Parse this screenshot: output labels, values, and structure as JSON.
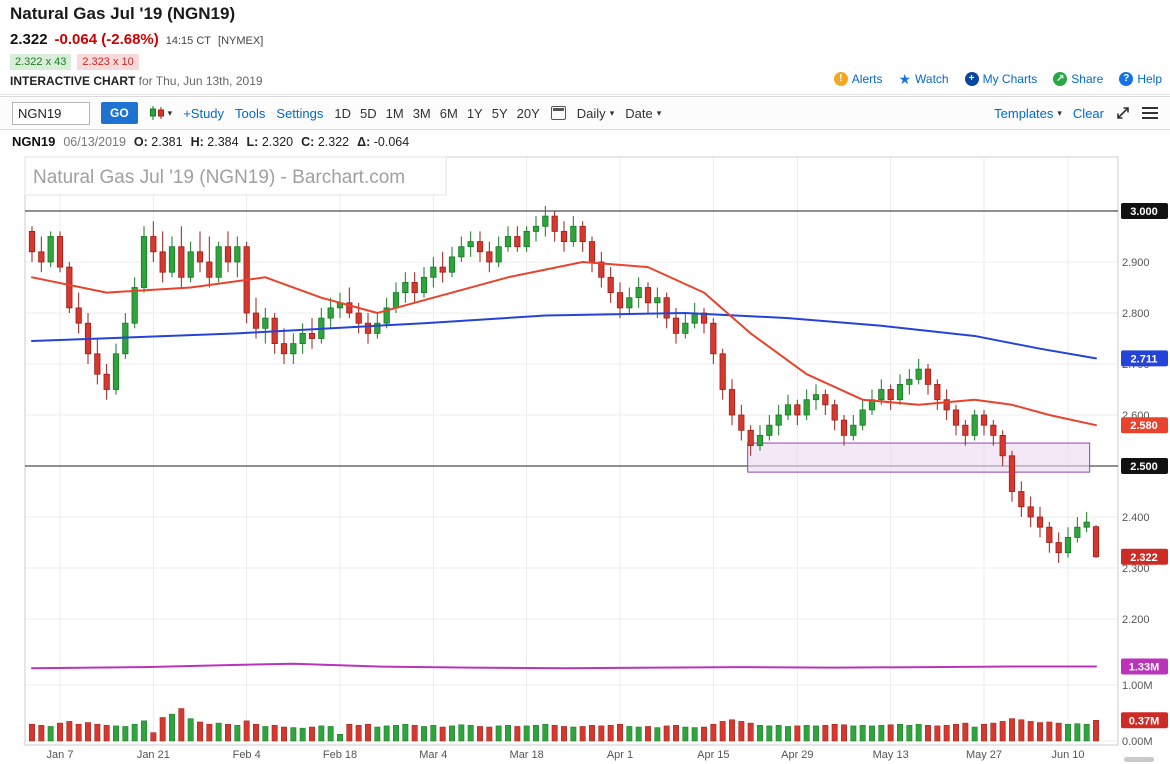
{
  "header": {
    "title": "Natural Gas Jul '19 (NGN19)",
    "price": "2.322",
    "change": "-0.064 (-2.68%)",
    "time": "14:15 CT",
    "exchange": "[NYMEX]",
    "bid": "2.322 x 43",
    "ask": "2.323 x 10",
    "chart_label": "INTERACTIVE CHART",
    "chart_date": " for Thu, Jun 13th, 2019",
    "links": [
      {
        "label": "Alerts"
      },
      {
        "label": "Watch"
      },
      {
        "label": "My Charts"
      },
      {
        "label": "Share"
      },
      {
        "label": "Help"
      }
    ]
  },
  "icons": {
    "caret": "▾",
    "alerts": "!",
    "watch": "★",
    "my_charts": "+",
    "share": "↗",
    "help": "?"
  },
  "toolbar": {
    "symbol_value": "NGN19",
    "go_label": "GO",
    "study_label": "+Study",
    "tools_label": "Tools",
    "settings_label": "Settings",
    "periods": [
      "1D",
      "5D",
      "1M",
      "3M",
      "6M",
      "1Y",
      "5Y",
      "20Y"
    ],
    "frequency_label": "Daily",
    "date_label": "Date",
    "templates_label": "Templates",
    "clear_label": "Clear"
  },
  "quote_bar": {
    "symbol": "NGN19",
    "date": "06/13/2019",
    "o_label": "O:",
    "o": "2.381",
    "h_label": "H:",
    "h": "2.384",
    "l_label": "L:",
    "l": "2.320",
    "c_label": "C:",
    "c": "2.322",
    "d_label": "Δ:",
    "d": "-0.064"
  },
  "chart_data": {
    "type": "candlestick",
    "watermark": "Natural Gas Jul '19 (NGN19) - Barchart.com",
    "ylim": [
      2.2,
      3.05
    ],
    "volume_ylim": [
      0,
      1.5
    ],
    "colors": {
      "up": "#2fa33c",
      "up_border": "#157a24",
      "down": "#d5382e",
      "down_border": "#9e1f18",
      "grid": "#ededed",
      "hline": "#222222",
      "border": "#cccccc",
      "watermark": "#a0a0a0",
      "axis_text": "#555555"
    },
    "hlines": [
      3.0,
      2.5
    ],
    "highlight_zone": {
      "from": "2019-04-22",
      "to": "2019-06-12",
      "top": 2.545,
      "bottom": 2.488,
      "fill": "#e9d9f0",
      "stroke": "#8e44ad"
    },
    "y_ticks": [
      {
        "text": "2.900",
        "price": 2.9
      },
      {
        "text": "2.800",
        "price": 2.8
      },
      {
        "text": "2.700",
        "price": 2.7
      },
      {
        "text": "2.600",
        "price": 2.6
      },
      {
        "text": "2.400",
        "price": 2.4
      },
      {
        "text": "2.300",
        "price": 2.3
      },
      {
        "text": "2.200",
        "price": 2.2
      }
    ],
    "y_badges": [
      {
        "text": "3.000",
        "price": 3.0,
        "color": "#111111"
      },
      {
        "text": "2.711",
        "price": 2.711,
        "color": "#2643d9"
      },
      {
        "text": "2.580",
        "price": 2.58,
        "color": "#e8432d"
      },
      {
        "text": "2.500",
        "price": 2.5,
        "color": "#111111"
      },
      {
        "text": "2.322",
        "price": 2.322,
        "color": "#cf2b26"
      }
    ],
    "lower_ticks": [
      {
        "text": "1.00M",
        "value": 1.0
      },
      {
        "text": "0.00M",
        "value": 0.0
      }
    ],
    "lower_badges": [
      {
        "text": "1.33M",
        "value": 1.33,
        "color": "#bb33bb"
      },
      {
        "text": "0.37M",
        "value": 0.37,
        "color": "#cf2b26"
      }
    ],
    "x_ticks": [
      {
        "label": "Jan 7",
        "date": "2019-01-07"
      },
      {
        "label": "Jan 21",
        "date": "2019-01-21"
      },
      {
        "label": "Feb 4",
        "date": "2019-02-04"
      },
      {
        "label": "Feb 18",
        "date": "2019-02-18"
      },
      {
        "label": "Mar 4",
        "date": "2019-03-04"
      },
      {
        "label": "Mar 18",
        "date": "2019-03-18"
      },
      {
        "label": "Apr 1",
        "date": "2019-04-01"
      },
      {
        "label": "Apr 15",
        "date": "2019-04-15"
      },
      {
        "label": "Apr 29",
        "date": "2019-04-29"
      },
      {
        "label": "May 13",
        "date": "2019-05-13"
      },
      {
        "label": "May 27",
        "date": "2019-05-27"
      },
      {
        "label": "Jun 10",
        "date": "2019-06-10"
      }
    ],
    "overlays": {
      "ma_fast": {
        "name": "red-moving-average",
        "color": "#e8432d",
        "points": [
          [
            "2019-01-02",
            2.87
          ],
          [
            "2019-01-14",
            2.84
          ],
          [
            "2019-01-25",
            2.85
          ],
          [
            "2019-02-06",
            2.87
          ],
          [
            "2019-02-14",
            2.83
          ],
          [
            "2019-02-22",
            2.8
          ],
          [
            "2019-03-04",
            2.83
          ],
          [
            "2019-03-14",
            2.87
          ],
          [
            "2019-03-26",
            2.9
          ],
          [
            "2019-04-04",
            2.89
          ],
          [
            "2019-04-12",
            2.84
          ],
          [
            "2019-04-22",
            2.76
          ],
          [
            "2019-04-30",
            2.68
          ],
          [
            "2019-05-08",
            2.63
          ],
          [
            "2019-05-16",
            2.62
          ],
          [
            "2019-05-24",
            2.63
          ],
          [
            "2019-05-31",
            2.62
          ],
          [
            "2019-06-06",
            2.6
          ],
          [
            "2019-06-13",
            2.58
          ]
        ]
      },
      "ma_slow": {
        "name": "blue-moving-average",
        "color": "#2643d9",
        "points": [
          [
            "2019-01-02",
            2.745
          ],
          [
            "2019-02-01",
            2.76
          ],
          [
            "2019-03-01",
            2.78
          ],
          [
            "2019-03-20",
            2.795
          ],
          [
            "2019-04-10",
            2.8
          ],
          [
            "2019-04-26",
            2.79
          ],
          [
            "2019-05-10",
            2.775
          ],
          [
            "2019-05-24",
            2.755
          ],
          [
            "2019-06-05",
            2.73
          ],
          [
            "2019-06-13",
            2.711
          ]
        ]
      },
      "lower_line": {
        "name": "open-interest-line",
        "color": "#bb33bb",
        "points": [
          [
            "2019-01-02",
            1.3
          ],
          [
            "2019-01-18",
            1.32
          ],
          [
            "2019-02-01",
            1.36
          ],
          [
            "2019-02-11",
            1.38
          ],
          [
            "2019-02-22",
            1.33
          ],
          [
            "2019-03-08",
            1.31
          ],
          [
            "2019-03-22",
            1.3
          ],
          [
            "2019-04-05",
            1.31
          ],
          [
            "2019-04-18",
            1.32
          ],
          [
            "2019-05-03",
            1.31
          ],
          [
            "2019-05-17",
            1.32
          ],
          [
            "2019-05-31",
            1.33
          ],
          [
            "2019-06-13",
            1.33
          ]
        ]
      }
    },
    "candles": [
      [
        "2019-01-02",
        2.96,
        2.97,
        2.9,
        2.92,
        0.3
      ],
      [
        "2019-01-03",
        2.92,
        2.95,
        2.88,
        2.9,
        0.28
      ],
      [
        "2019-01-04",
        2.9,
        2.96,
        2.89,
        2.95,
        0.26
      ],
      [
        "2019-01-07",
        2.95,
        2.96,
        2.88,
        2.89,
        0.32
      ],
      [
        "2019-01-08",
        2.89,
        2.9,
        2.8,
        2.81,
        0.35
      ],
      [
        "2019-01-09",
        2.81,
        2.84,
        2.76,
        2.78,
        0.3
      ],
      [
        "2019-01-10",
        2.78,
        2.8,
        2.7,
        2.72,
        0.33
      ],
      [
        "2019-01-11",
        2.72,
        2.75,
        2.66,
        2.68,
        0.3
      ],
      [
        "2019-01-14",
        2.68,
        2.7,
        2.63,
        2.65,
        0.28
      ],
      [
        "2019-01-15",
        2.65,
        2.74,
        2.64,
        2.72,
        0.27
      ],
      [
        "2019-01-16",
        2.72,
        2.8,
        2.71,
        2.78,
        0.26
      ],
      [
        "2019-01-17",
        2.78,
        2.87,
        2.77,
        2.85,
        0.3
      ],
      [
        "2019-01-18",
        2.85,
        2.97,
        2.84,
        2.95,
        0.36
      ],
      [
        "2019-01-21",
        2.95,
        2.98,
        2.9,
        2.92,
        0.15
      ],
      [
        "2019-01-22",
        2.92,
        2.96,
        2.86,
        2.88,
        0.42
      ],
      [
        "2019-01-23",
        2.88,
        2.95,
        2.87,
        2.93,
        0.48
      ],
      [
        "2019-01-24",
        2.93,
        2.97,
        2.85,
        2.87,
        0.58
      ],
      [
        "2019-01-25",
        2.87,
        2.94,
        2.86,
        2.92,
        0.4
      ],
      [
        "2019-01-28",
        2.92,
        2.96,
        2.88,
        2.9,
        0.34
      ],
      [
        "2019-01-29",
        2.9,
        2.95,
        2.85,
        2.87,
        0.3
      ],
      [
        "2019-01-30",
        2.87,
        2.94,
        2.86,
        2.93,
        0.32
      ],
      [
        "2019-01-31",
        2.93,
        2.96,
        2.88,
        2.9,
        0.3
      ],
      [
        "2019-02-01",
        2.9,
        2.95,
        2.87,
        2.93,
        0.28
      ],
      [
        "2019-02-04",
        2.93,
        2.94,
        2.78,
        2.8,
        0.36
      ],
      [
        "2019-02-05",
        2.8,
        2.83,
        2.75,
        2.77,
        0.3
      ],
      [
        "2019-02-06",
        2.77,
        2.81,
        2.74,
        2.79,
        0.26
      ],
      [
        "2019-02-07",
        2.79,
        2.8,
        2.72,
        2.74,
        0.28
      ],
      [
        "2019-02-08",
        2.74,
        2.77,
        2.7,
        2.72,
        0.25
      ],
      [
        "2019-02-11",
        2.72,
        2.76,
        2.7,
        2.74,
        0.24
      ],
      [
        "2019-02-12",
        2.74,
        2.78,
        2.72,
        2.76,
        0.23
      ],
      [
        "2019-02-13",
        2.76,
        2.79,
        2.73,
        2.75,
        0.25
      ],
      [
        "2019-02-14",
        2.75,
        2.81,
        2.74,
        2.79,
        0.27
      ],
      [
        "2019-02-15",
        2.79,
        2.83,
        2.77,
        2.81,
        0.26
      ],
      [
        "2019-02-18",
        2.81,
        2.84,
        2.79,
        2.82,
        0.12
      ],
      [
        "2019-02-19",
        2.82,
        2.85,
        2.79,
        2.8,
        0.3
      ],
      [
        "2019-02-20",
        2.8,
        2.82,
        2.76,
        2.78,
        0.28
      ],
      [
        "2019-02-21",
        2.78,
        2.8,
        2.74,
        2.76,
        0.3
      ],
      [
        "2019-02-22",
        2.76,
        2.8,
        2.75,
        2.78,
        0.25
      ],
      [
        "2019-02-25",
        2.78,
        2.83,
        2.77,
        2.81,
        0.27
      ],
      [
        "2019-02-26",
        2.81,
        2.86,
        2.8,
        2.84,
        0.28
      ],
      [
        "2019-02-27",
        2.84,
        2.88,
        2.82,
        2.86,
        0.3
      ],
      [
        "2019-02-28",
        2.86,
        2.88,
        2.82,
        2.84,
        0.28
      ],
      [
        "2019-03-01",
        2.84,
        2.89,
        2.83,
        2.87,
        0.26
      ],
      [
        "2019-03-04",
        2.87,
        2.91,
        2.85,
        2.89,
        0.28
      ],
      [
        "2019-03-05",
        2.89,
        2.92,
        2.86,
        2.88,
        0.25
      ],
      [
        "2019-03-06",
        2.88,
        2.93,
        2.87,
        2.91,
        0.27
      ],
      [
        "2019-03-07",
        2.91,
        2.95,
        2.9,
        2.93,
        0.29
      ],
      [
        "2019-03-08",
        2.93,
        2.96,
        2.91,
        2.94,
        0.28
      ],
      [
        "2019-03-11",
        2.94,
        2.96,
        2.9,
        2.92,
        0.26
      ],
      [
        "2019-03-12",
        2.92,
        2.94,
        2.88,
        2.9,
        0.25
      ],
      [
        "2019-03-13",
        2.9,
        2.95,
        2.89,
        2.93,
        0.27
      ],
      [
        "2019-03-14",
        2.93,
        2.97,
        2.92,
        2.95,
        0.28
      ],
      [
        "2019-03-15",
        2.95,
        2.97,
        2.92,
        2.93,
        0.26
      ],
      [
        "2019-03-18",
        2.93,
        2.97,
        2.92,
        2.96,
        0.27
      ],
      [
        "2019-03-19",
        2.96,
        2.99,
        2.94,
        2.97,
        0.28
      ],
      [
        "2019-03-20",
        2.97,
        3.01,
        2.95,
        2.99,
        0.3
      ],
      [
        "2019-03-21",
        2.99,
        3.0,
        2.94,
        2.96,
        0.28
      ],
      [
        "2019-03-22",
        2.96,
        2.98,
        2.92,
        2.94,
        0.26
      ],
      [
        "2019-03-25",
        2.94,
        2.99,
        2.93,
        2.97,
        0.25
      ],
      [
        "2019-03-26",
        2.97,
        2.98,
        2.92,
        2.94,
        0.26
      ],
      [
        "2019-03-27",
        2.94,
        2.95,
        2.88,
        2.9,
        0.28
      ],
      [
        "2019-03-28",
        2.9,
        2.92,
        2.85,
        2.87,
        0.27
      ],
      [
        "2019-03-29",
        2.87,
        2.89,
        2.82,
        2.84,
        0.28
      ],
      [
        "2019-04-01",
        2.84,
        2.86,
        2.79,
        2.81,
        0.3
      ],
      [
        "2019-04-02",
        2.81,
        2.85,
        2.8,
        2.83,
        0.26
      ],
      [
        "2019-04-03",
        2.83,
        2.87,
        2.81,
        2.85,
        0.25
      ],
      [
        "2019-04-04",
        2.85,
        2.86,
        2.8,
        2.82,
        0.26
      ],
      [
        "2019-04-05",
        2.82,
        2.85,
        2.79,
        2.83,
        0.24
      ],
      [
        "2019-04-08",
        2.83,
        2.84,
        2.77,
        2.79,
        0.27
      ],
      [
        "2019-04-09",
        2.79,
        2.81,
        2.74,
        2.76,
        0.28
      ],
      [
        "2019-04-10",
        2.76,
        2.8,
        2.75,
        2.78,
        0.25
      ],
      [
        "2019-04-11",
        2.78,
        2.82,
        2.77,
        2.8,
        0.24
      ],
      [
        "2019-04-12",
        2.8,
        2.81,
        2.76,
        2.78,
        0.25
      ],
      [
        "2019-04-15",
        2.78,
        2.79,
        2.7,
        2.72,
        0.3
      ],
      [
        "2019-04-16",
        2.72,
        2.73,
        2.63,
        2.65,
        0.35
      ],
      [
        "2019-04-17",
        2.65,
        2.67,
        2.58,
        2.6,
        0.38
      ],
      [
        "2019-04-18",
        2.6,
        2.62,
        2.55,
        2.57,
        0.35
      ],
      [
        "2019-04-22",
        2.57,
        2.58,
        2.52,
        2.54,
        0.32
      ],
      [
        "2019-04-23",
        2.54,
        2.58,
        2.53,
        2.56,
        0.28
      ],
      [
        "2019-04-24",
        2.56,
        2.6,
        2.55,
        2.58,
        0.27
      ],
      [
        "2019-04-25",
        2.58,
        2.62,
        2.56,
        2.6,
        0.28
      ],
      [
        "2019-04-26",
        2.6,
        2.64,
        2.59,
        2.62,
        0.26
      ],
      [
        "2019-04-29",
        2.62,
        2.63,
        2.58,
        2.6,
        0.27
      ],
      [
        "2019-04-30",
        2.6,
        2.65,
        2.59,
        2.63,
        0.28
      ],
      [
        "2019-05-01",
        2.63,
        2.66,
        2.61,
        2.64,
        0.27
      ],
      [
        "2019-05-02",
        2.64,
        2.65,
        2.6,
        2.62,
        0.28
      ],
      [
        "2019-05-03",
        2.62,
        2.63,
        2.57,
        2.59,
        0.3
      ],
      [
        "2019-05-06",
        2.59,
        2.6,
        2.54,
        2.56,
        0.29
      ],
      [
        "2019-05-07",
        2.56,
        2.6,
        2.55,
        2.58,
        0.27
      ],
      [
        "2019-05-08",
        2.58,
        2.63,
        2.57,
        2.61,
        0.28
      ],
      [
        "2019-05-09",
        2.61,
        2.65,
        2.6,
        2.63,
        0.27
      ],
      [
        "2019-05-10",
        2.63,
        2.67,
        2.62,
        2.65,
        0.28
      ],
      [
        "2019-05-13",
        2.65,
        2.66,
        2.61,
        2.63,
        0.29
      ],
      [
        "2019-05-14",
        2.63,
        2.68,
        2.62,
        2.66,
        0.3
      ],
      [
        "2019-05-15",
        2.66,
        2.69,
        2.64,
        2.67,
        0.28
      ],
      [
        "2019-05-16",
        2.67,
        2.71,
        2.66,
        2.69,
        0.3
      ],
      [
        "2019-05-17",
        2.69,
        2.7,
        2.64,
        2.66,
        0.28
      ],
      [
        "2019-05-20",
        2.66,
        2.67,
        2.61,
        2.63,
        0.27
      ],
      [
        "2019-05-21",
        2.63,
        2.65,
        2.59,
        2.61,
        0.28
      ],
      [
        "2019-05-22",
        2.61,
        2.62,
        2.56,
        2.58,
        0.3
      ],
      [
        "2019-05-23",
        2.58,
        2.59,
        2.54,
        2.56,
        0.32
      ],
      [
        "2019-05-24",
        2.56,
        2.61,
        2.55,
        2.6,
        0.25
      ],
      [
        "2019-05-28",
        2.6,
        2.61,
        2.56,
        2.58,
        0.3
      ],
      [
        "2019-05-29",
        2.58,
        2.59,
        2.54,
        2.56,
        0.32
      ],
      [
        "2019-05-30",
        2.56,
        2.57,
        2.5,
        2.52,
        0.35
      ],
      [
        "2019-05-31",
        2.52,
        2.53,
        2.43,
        2.45,
        0.4
      ],
      [
        "2019-06-03",
        2.45,
        2.47,
        2.4,
        2.42,
        0.38
      ],
      [
        "2019-06-04",
        2.42,
        2.44,
        2.38,
        2.4,
        0.35
      ],
      [
        "2019-06-05",
        2.4,
        2.42,
        2.36,
        2.38,
        0.33
      ],
      [
        "2019-06-06",
        2.38,
        2.39,
        2.33,
        2.35,
        0.34
      ],
      [
        "2019-06-07",
        2.35,
        2.37,
        2.31,
        2.33,
        0.32
      ],
      [
        "2019-06-10",
        2.33,
        2.38,
        2.32,
        2.36,
        0.3
      ],
      [
        "2019-06-11",
        2.36,
        2.4,
        2.35,
        2.38,
        0.31
      ],
      [
        "2019-06-12",
        2.38,
        2.41,
        2.37,
        2.39,
        0.3
      ],
      [
        "2019-06-13",
        2.381,
        2.384,
        2.32,
        2.322,
        0.37
      ]
    ]
  }
}
